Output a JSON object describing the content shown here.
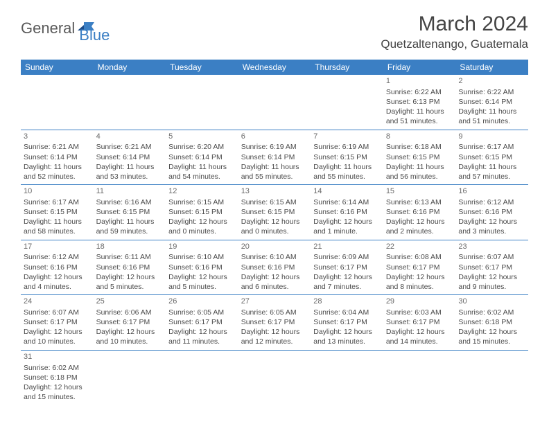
{
  "logo": {
    "main": "General",
    "sub": "Blue"
  },
  "title": "March 2024",
  "location": "Quetzaltenango, Guatemala",
  "dayHeaders": [
    "Sunday",
    "Monday",
    "Tuesday",
    "Wednesday",
    "Thursday",
    "Friday",
    "Saturday"
  ],
  "colors": {
    "headerBg": "#3b7fc4",
    "headerText": "#ffffff",
    "border": "#3b7fc4",
    "bodyText": "#4a4a4a",
    "titleText": "#444444"
  },
  "weeks": [
    [
      null,
      null,
      null,
      null,
      null,
      {
        "n": "1",
        "sr": "Sunrise: 6:22 AM",
        "ss": "Sunset: 6:13 PM",
        "d1": "Daylight: 11 hours",
        "d2": "and 51 minutes."
      },
      {
        "n": "2",
        "sr": "Sunrise: 6:22 AM",
        "ss": "Sunset: 6:14 PM",
        "d1": "Daylight: 11 hours",
        "d2": "and 51 minutes."
      }
    ],
    [
      {
        "n": "3",
        "sr": "Sunrise: 6:21 AM",
        "ss": "Sunset: 6:14 PM",
        "d1": "Daylight: 11 hours",
        "d2": "and 52 minutes."
      },
      {
        "n": "4",
        "sr": "Sunrise: 6:21 AM",
        "ss": "Sunset: 6:14 PM",
        "d1": "Daylight: 11 hours",
        "d2": "and 53 minutes."
      },
      {
        "n": "5",
        "sr": "Sunrise: 6:20 AM",
        "ss": "Sunset: 6:14 PM",
        "d1": "Daylight: 11 hours",
        "d2": "and 54 minutes."
      },
      {
        "n": "6",
        "sr": "Sunrise: 6:19 AM",
        "ss": "Sunset: 6:14 PM",
        "d1": "Daylight: 11 hours",
        "d2": "and 55 minutes."
      },
      {
        "n": "7",
        "sr": "Sunrise: 6:19 AM",
        "ss": "Sunset: 6:15 PM",
        "d1": "Daylight: 11 hours",
        "d2": "and 55 minutes."
      },
      {
        "n": "8",
        "sr": "Sunrise: 6:18 AM",
        "ss": "Sunset: 6:15 PM",
        "d1": "Daylight: 11 hours",
        "d2": "and 56 minutes."
      },
      {
        "n": "9",
        "sr": "Sunrise: 6:17 AM",
        "ss": "Sunset: 6:15 PM",
        "d1": "Daylight: 11 hours",
        "d2": "and 57 minutes."
      }
    ],
    [
      {
        "n": "10",
        "sr": "Sunrise: 6:17 AM",
        "ss": "Sunset: 6:15 PM",
        "d1": "Daylight: 11 hours",
        "d2": "and 58 minutes."
      },
      {
        "n": "11",
        "sr": "Sunrise: 6:16 AM",
        "ss": "Sunset: 6:15 PM",
        "d1": "Daylight: 11 hours",
        "d2": "and 59 minutes."
      },
      {
        "n": "12",
        "sr": "Sunrise: 6:15 AM",
        "ss": "Sunset: 6:15 PM",
        "d1": "Daylight: 12 hours",
        "d2": "and 0 minutes."
      },
      {
        "n": "13",
        "sr": "Sunrise: 6:15 AM",
        "ss": "Sunset: 6:15 PM",
        "d1": "Daylight: 12 hours",
        "d2": "and 0 minutes."
      },
      {
        "n": "14",
        "sr": "Sunrise: 6:14 AM",
        "ss": "Sunset: 6:16 PM",
        "d1": "Daylight: 12 hours",
        "d2": "and 1 minute."
      },
      {
        "n": "15",
        "sr": "Sunrise: 6:13 AM",
        "ss": "Sunset: 6:16 PM",
        "d1": "Daylight: 12 hours",
        "d2": "and 2 minutes."
      },
      {
        "n": "16",
        "sr": "Sunrise: 6:12 AM",
        "ss": "Sunset: 6:16 PM",
        "d1": "Daylight: 12 hours",
        "d2": "and 3 minutes."
      }
    ],
    [
      {
        "n": "17",
        "sr": "Sunrise: 6:12 AM",
        "ss": "Sunset: 6:16 PM",
        "d1": "Daylight: 12 hours",
        "d2": "and 4 minutes."
      },
      {
        "n": "18",
        "sr": "Sunrise: 6:11 AM",
        "ss": "Sunset: 6:16 PM",
        "d1": "Daylight: 12 hours",
        "d2": "and 5 minutes."
      },
      {
        "n": "19",
        "sr": "Sunrise: 6:10 AM",
        "ss": "Sunset: 6:16 PM",
        "d1": "Daylight: 12 hours",
        "d2": "and 5 minutes."
      },
      {
        "n": "20",
        "sr": "Sunrise: 6:10 AM",
        "ss": "Sunset: 6:16 PM",
        "d1": "Daylight: 12 hours",
        "d2": "and 6 minutes."
      },
      {
        "n": "21",
        "sr": "Sunrise: 6:09 AM",
        "ss": "Sunset: 6:17 PM",
        "d1": "Daylight: 12 hours",
        "d2": "and 7 minutes."
      },
      {
        "n": "22",
        "sr": "Sunrise: 6:08 AM",
        "ss": "Sunset: 6:17 PM",
        "d1": "Daylight: 12 hours",
        "d2": "and 8 minutes."
      },
      {
        "n": "23",
        "sr": "Sunrise: 6:07 AM",
        "ss": "Sunset: 6:17 PM",
        "d1": "Daylight: 12 hours",
        "d2": "and 9 minutes."
      }
    ],
    [
      {
        "n": "24",
        "sr": "Sunrise: 6:07 AM",
        "ss": "Sunset: 6:17 PM",
        "d1": "Daylight: 12 hours",
        "d2": "and 10 minutes."
      },
      {
        "n": "25",
        "sr": "Sunrise: 6:06 AM",
        "ss": "Sunset: 6:17 PM",
        "d1": "Daylight: 12 hours",
        "d2": "and 10 minutes."
      },
      {
        "n": "26",
        "sr": "Sunrise: 6:05 AM",
        "ss": "Sunset: 6:17 PM",
        "d1": "Daylight: 12 hours",
        "d2": "and 11 minutes."
      },
      {
        "n": "27",
        "sr": "Sunrise: 6:05 AM",
        "ss": "Sunset: 6:17 PM",
        "d1": "Daylight: 12 hours",
        "d2": "and 12 minutes."
      },
      {
        "n": "28",
        "sr": "Sunrise: 6:04 AM",
        "ss": "Sunset: 6:17 PM",
        "d1": "Daylight: 12 hours",
        "d2": "and 13 minutes."
      },
      {
        "n": "29",
        "sr": "Sunrise: 6:03 AM",
        "ss": "Sunset: 6:17 PM",
        "d1": "Daylight: 12 hours",
        "d2": "and 14 minutes."
      },
      {
        "n": "30",
        "sr": "Sunrise: 6:02 AM",
        "ss": "Sunset: 6:18 PM",
        "d1": "Daylight: 12 hours",
        "d2": "and 15 minutes."
      }
    ],
    [
      {
        "n": "31",
        "sr": "Sunrise: 6:02 AM",
        "ss": "Sunset: 6:18 PM",
        "d1": "Daylight: 12 hours",
        "d2": "and 15 minutes."
      },
      null,
      null,
      null,
      null,
      null,
      null
    ]
  ]
}
